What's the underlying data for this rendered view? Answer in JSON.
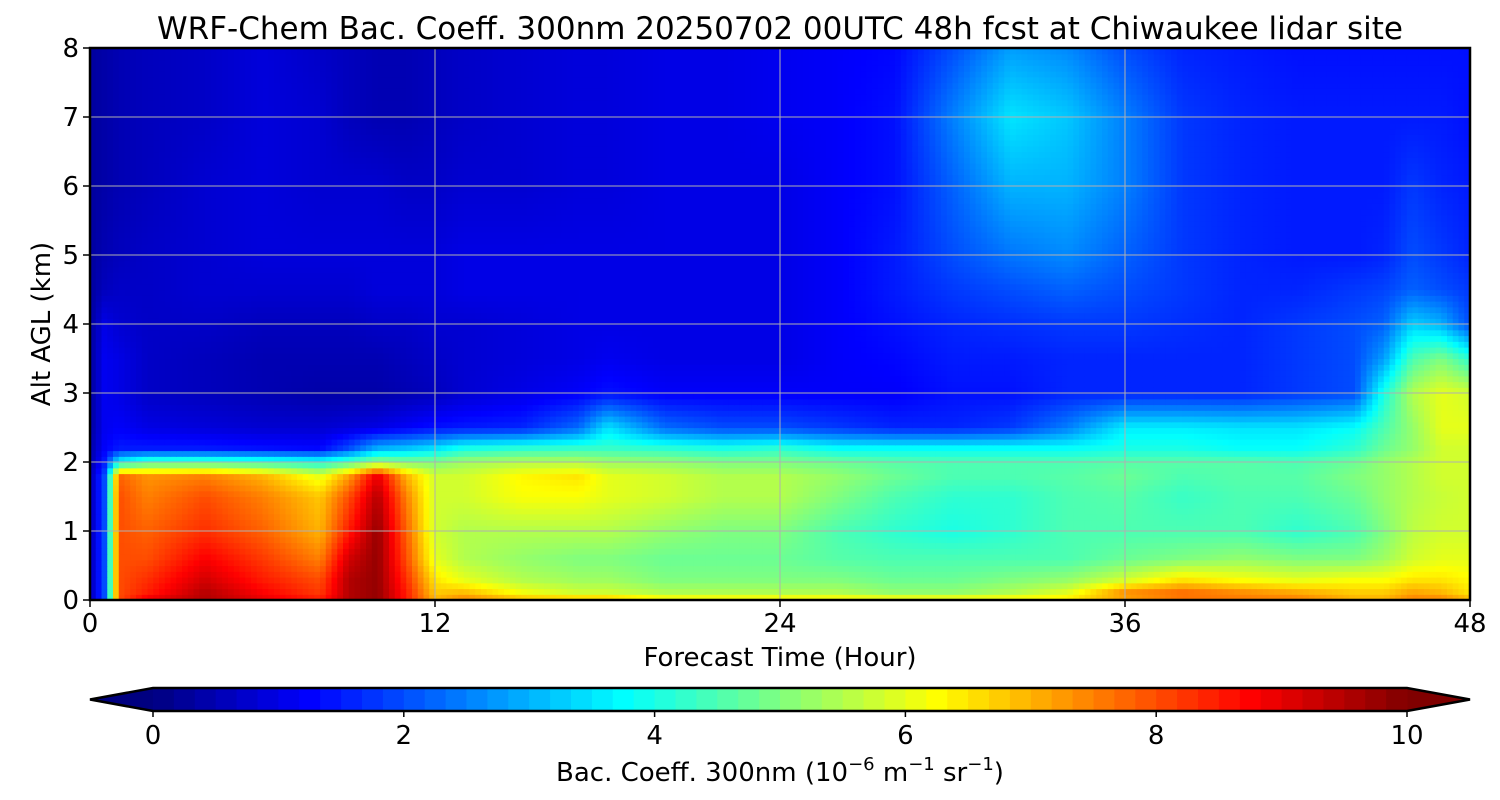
{
  "chart_data": {
    "type": "heatmap",
    "title": "WRF-Chem Bac. Coeff. 300nm  20250702 00UTC 48h fcst at Chiwaukee lidar site",
    "xlabel": "Forecast Time (Hour)",
    "ylabel": "Alt AGL (km)",
    "xlim": [
      0,
      48
    ],
    "ylim": [
      0,
      8
    ],
    "x_ticks": [
      0,
      12,
      24,
      36,
      48
    ],
    "y_ticks": [
      0,
      1,
      2,
      3,
      4,
      5,
      6,
      7,
      8
    ],
    "grid": true,
    "colormap": "jet",
    "colorbar": {
      "label_main": "Bac. Coeff. 300nm  (10",
      "label_exp1": "−6",
      "label_mid1": " m",
      "label_exp2": "−1",
      "label_mid2": " sr",
      "label_exp3": "−1",
      "label_end": ")",
      "min": 0,
      "max": 10,
      "ticks": [
        0,
        2,
        4,
        6,
        8,
        10
      ],
      "extend": "both",
      "orientation": "horizontal",
      "position": "bottom"
    },
    "x": [
      0,
      0.5,
      1,
      2,
      4,
      6,
      8,
      9,
      10,
      11,
      12,
      13,
      15,
      17,
      18,
      20,
      22,
      24,
      26,
      28,
      30,
      32,
      34,
      36,
      38,
      40,
      42,
      44,
      45,
      46,
      47,
      48
    ],
    "y": [
      0,
      0.1,
      0.3,
      0.6,
      1.0,
      1.5,
      1.8,
      2.0,
      2.2,
      2.5,
      3.0,
      3.5,
      4.0,
      4.5,
      5.0,
      6.0,
      7.0,
      8.0
    ],
    "z": [
      [
        0.5,
        2.0,
        8.0,
        9.0,
        9.5,
        9.0,
        8.5,
        9.5,
        9.8,
        8.5,
        7.0,
        7.5,
        7.0,
        7.0,
        7.0,
        6.5,
        6.5,
        6.5,
        6.5,
        6.5,
        6.5,
        6.5,
        6.5,
        7.0,
        7.5,
        7.5,
        7.5,
        7.0,
        7.0,
        7.5,
        7.5,
        7.0
      ],
      [
        0.5,
        2.0,
        8.0,
        8.5,
        9.5,
        8.8,
        8.2,
        9.5,
        9.8,
        8.5,
        6.8,
        7.0,
        6.2,
        5.8,
        5.8,
        5.5,
        5.5,
        5.5,
        5.5,
        5.2,
        5.2,
        5.5,
        6.0,
        7.5,
        7.8,
        7.5,
        7.2,
        6.8,
        6.8,
        7.2,
        7.0,
        6.5
      ],
      [
        0.5,
        2.0,
        8.0,
        8.3,
        9.2,
        8.5,
        8.0,
        9.5,
        9.8,
        8.3,
        6.5,
        6.0,
        5.5,
        5.3,
        5.3,
        5.0,
        5.0,
        5.0,
        5.0,
        4.8,
        4.8,
        5.0,
        5.2,
        5.8,
        6.5,
        6.2,
        6.0,
        6.2,
        6.2,
        6.5,
        6.5,
        6.3
      ],
      [
        0.5,
        2.0,
        8.0,
        8.0,
        8.8,
        8.2,
        7.5,
        9.2,
        9.8,
        8.0,
        6.0,
        5.5,
        5.2,
        5.0,
        5.0,
        4.8,
        4.8,
        4.8,
        4.6,
        4.5,
        4.5,
        4.5,
        4.5,
        4.8,
        5.0,
        5.2,
        5.0,
        5.0,
        5.3,
        5.8,
        6.0,
        6.0
      ],
      [
        0.5,
        2.0,
        8.0,
        7.8,
        8.3,
        7.8,
        7.0,
        8.5,
        9.8,
        7.8,
        5.8,
        5.5,
        5.5,
        5.5,
        5.5,
        5.2,
        5.0,
        5.0,
        4.5,
        4.2,
        4.0,
        4.2,
        4.5,
        4.5,
        4.5,
        4.5,
        4.2,
        4.5,
        5.0,
        5.6,
        5.8,
        5.8
      ],
      [
        0.5,
        2.0,
        8.0,
        7.5,
        8.0,
        7.5,
        6.8,
        8.0,
        9.5,
        7.5,
        5.8,
        5.8,
        6.2,
        6.2,
        6.0,
        5.8,
        5.5,
        5.5,
        5.0,
        4.5,
        4.2,
        4.2,
        4.5,
        4.6,
        4.3,
        4.5,
        4.5,
        4.8,
        5.2,
        5.5,
        5.7,
        5.8
      ],
      [
        0.5,
        2.0,
        7.8,
        7.3,
        7.5,
        7.0,
        6.0,
        7.2,
        9.0,
        7.0,
        5.8,
        5.8,
        6.3,
        6.5,
        6.0,
        5.8,
        5.5,
        5.5,
        5.2,
        4.8,
        4.5,
        4.5,
        4.6,
        4.8,
        4.5,
        4.6,
        4.6,
        5.0,
        5.2,
        5.5,
        5.8,
        5.8
      ],
      [
        0.4,
        1.5,
        3.8,
        4.5,
        4.5,
        4.3,
        4.0,
        4.5,
        5.2,
        5.0,
        5.0,
        5.3,
        5.5,
        5.5,
        5.3,
        5.2,
        5.0,
        5.0,
        4.8,
        4.6,
        4.5,
        4.5,
        4.5,
        4.6,
        4.6,
        4.6,
        4.5,
        4.8,
        5.2,
        5.5,
        5.8,
        5.8
      ],
      [
        0.4,
        1.2,
        1.5,
        1.5,
        1.5,
        1.4,
        1.3,
        2.0,
        3.0,
        3.2,
        3.5,
        4.0,
        4.2,
        4.3,
        4.3,
        4.2,
        4.0,
        4.2,
        3.8,
        3.8,
        3.8,
        3.8,
        3.8,
        4.0,
        4.0,
        3.8,
        3.8,
        4.2,
        4.8,
        5.2,
        5.8,
        5.8
      ],
      [
        0.3,
        1.1,
        1.2,
        1.0,
        0.9,
        0.8,
        0.8,
        0.9,
        1.0,
        1.2,
        1.4,
        1.5,
        1.6,
        2.3,
        3.5,
        2.3,
        2.0,
        2.0,
        1.8,
        1.6,
        1.6,
        1.8,
        2.5,
        3.6,
        3.6,
        3.5,
        3.5,
        3.8,
        4.5,
        5.2,
        6.0,
        6.0
      ],
      [
        0.3,
        1.1,
        1.0,
        0.7,
        0.6,
        0.5,
        0.4,
        0.4,
        0.4,
        0.5,
        0.6,
        0.8,
        1.0,
        1.2,
        1.4,
        1.2,
        1.2,
        1.2,
        1.2,
        1.2,
        1.4,
        1.4,
        1.6,
        1.6,
        1.6,
        1.6,
        1.8,
        2.0,
        4.0,
        5.5,
        6.0,
        5.8
      ],
      [
        0.3,
        1.1,
        1.0,
        0.7,
        0.6,
        0.5,
        0.5,
        0.5,
        0.5,
        0.6,
        0.7,
        0.8,
        0.9,
        1.0,
        1.1,
        1.0,
        1.0,
        1.0,
        1.2,
        1.3,
        1.5,
        1.5,
        1.6,
        1.6,
        1.6,
        1.6,
        1.8,
        2.0,
        2.8,
        4.5,
        5.0,
        4.2
      ],
      [
        0.3,
        1.0,
        0.8,
        0.7,
        0.7,
        0.6,
        0.6,
        0.6,
        0.7,
        0.7,
        0.8,
        0.8,
        0.9,
        1.0,
        1.0,
        1.0,
        1.0,
        1.0,
        1.2,
        1.4,
        1.6,
        1.7,
        1.8,
        1.8,
        1.7,
        1.6,
        1.8,
        2.0,
        2.2,
        3.3,
        3.0,
        2.0
      ],
      [
        0.3,
        0.6,
        0.7,
        0.7,
        0.8,
        0.8,
        0.8,
        0.8,
        0.9,
        0.9,
        0.9,
        1.0,
        1.0,
        1.0,
        1.0,
        1.0,
        1.0,
        1.0,
        1.2,
        1.5,
        1.8,
        2.0,
        2.2,
        2.0,
        1.8,
        1.6,
        1.6,
        1.8,
        1.9,
        2.2,
        2.0,
        1.8
      ],
      [
        0.3,
        0.5,
        0.6,
        0.7,
        0.8,
        0.9,
        0.9,
        0.9,
        0.9,
        0.9,
        0.9,
        1.0,
        1.0,
        1.0,
        1.0,
        1.0,
        1.0,
        1.0,
        1.2,
        1.5,
        2.0,
        2.4,
        2.6,
        2.2,
        1.8,
        1.6,
        1.5,
        1.5,
        1.6,
        2.0,
        1.8,
        1.6
      ],
      [
        0.3,
        0.4,
        0.5,
        0.6,
        0.8,
        0.9,
        0.8,
        0.8,
        0.8,
        0.7,
        0.7,
        0.8,
        0.8,
        0.9,
        0.9,
        1.0,
        1.0,
        1.0,
        1.2,
        1.4,
        2.2,
        3.0,
        3.0,
        2.5,
        1.8,
        1.6,
        1.5,
        1.5,
        1.5,
        1.8,
        1.6,
        1.5
      ],
      [
        0.3,
        0.4,
        0.5,
        0.6,
        0.7,
        0.9,
        0.8,
        0.6,
        0.5,
        0.5,
        0.6,
        0.7,
        0.8,
        0.9,
        0.9,
        1.0,
        1.0,
        1.1,
        1.2,
        1.4,
        2.5,
        3.5,
        3.2,
        2.5,
        1.8,
        1.6,
        1.5,
        1.5,
        1.5,
        1.5,
        1.5,
        1.4
      ],
      [
        0.3,
        0.4,
        0.5,
        0.6,
        0.7,
        0.9,
        0.7,
        0.6,
        0.5,
        0.5,
        0.6,
        0.7,
        0.8,
        0.9,
        0.9,
        1.0,
        1.0,
        1.1,
        1.2,
        1.3,
        2.0,
        2.8,
        2.6,
        2.0,
        1.6,
        1.5,
        1.4,
        1.4,
        1.4,
        1.4,
        1.4,
        1.4
      ]
    ]
  }
}
